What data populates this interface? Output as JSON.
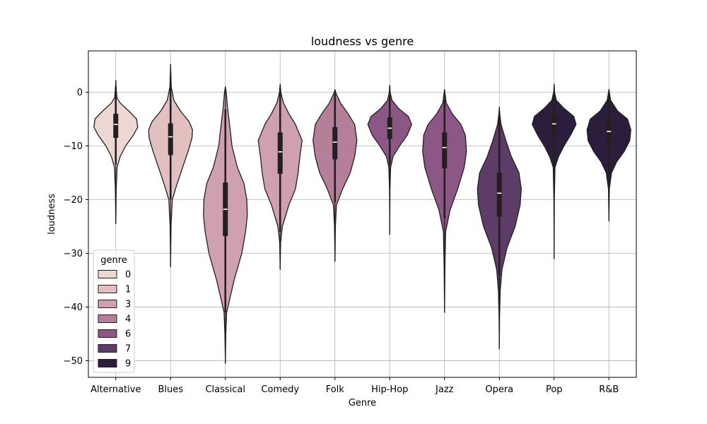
{
  "chart_data": {
    "type": "violin",
    "title": "loudness vs genre",
    "xlabel": "Genre",
    "ylabel": "loudness",
    "ylim": [
      -53.1,
      7.7
    ],
    "yticks": [
      0,
      -10,
      -20,
      -30,
      -40,
      -50
    ],
    "ytick_labels": [
      "0",
      "−10",
      "−20",
      "−30",
      "−40",
      "−50"
    ],
    "grid": true,
    "legend": {
      "title": "genre",
      "placement": "lower-left",
      "entries": [
        {
          "label": "0",
          "color": "#ecd7d2"
        },
        {
          "label": "1",
          "color": "#e2c0c0"
        },
        {
          "label": "3",
          "color": "#cfa0ad"
        },
        {
          "label": "4",
          "color": "#b67f99"
        },
        {
          "label": "6",
          "color": "#8c5785"
        },
        {
          "label": "7",
          "color": "#5e3c68"
        },
        {
          "label": "9",
          "color": "#2b1d3c"
        }
      ]
    },
    "categories": [
      "Alternative",
      "Blues",
      "Classical",
      "Comedy",
      "Folk",
      "Hip-Hop",
      "Jazz",
      "Opera",
      "Pop",
      "R&B"
    ],
    "series": [
      {
        "category": "Alternative",
        "hue": "0",
        "color": "#ecd7d2",
        "min": -24.5,
        "max": 2.2,
        "q1": -8.5,
        "median": -6.0,
        "q3": -4.0,
        "lower_adj": -13.5,
        "upper_adj": 1.0,
        "profile": [
          [
            -24.5,
            0
          ],
          [
            -18,
            0.02
          ],
          [
            -14,
            0.06
          ],
          [
            -12,
            0.2
          ],
          [
            -10,
            0.45
          ],
          [
            -8,
            0.8
          ],
          [
            -6.5,
            1.0
          ],
          [
            -5,
            0.95
          ],
          [
            -3.5,
            0.6
          ],
          [
            -2,
            0.2
          ],
          [
            -1,
            0.05
          ],
          [
            1,
            0.01
          ],
          [
            2.2,
            0
          ]
        ]
      },
      {
        "category": "Blues",
        "hue": "1",
        "color": "#e2c0c0",
        "min": -32.5,
        "max": 5.2,
        "q1": -11.7,
        "median": -8.3,
        "q3": -5.8,
        "lower_adj": -20.0,
        "upper_adj": 1.5,
        "profile": [
          [
            -32.5,
            0
          ],
          [
            -25,
            0.02
          ],
          [
            -20,
            0.08
          ],
          [
            -17,
            0.3
          ],
          [
            -14,
            0.55
          ],
          [
            -11,
            0.8
          ],
          [
            -8.5,
            0.98
          ],
          [
            -7,
            1.0
          ],
          [
            -5.5,
            0.85
          ],
          [
            -3.5,
            0.45
          ],
          [
            -1.5,
            0.15
          ],
          [
            1,
            0.03
          ],
          [
            5.2,
            0
          ]
        ]
      },
      {
        "category": "Classical",
        "hue": "3",
        "color": "#cfa0ad",
        "min": -50.5,
        "max": 1.0,
        "q1": -26.8,
        "median": -21.8,
        "q3": -16.8,
        "lower_adj": -41.0,
        "upper_adj": -3.2,
        "profile": [
          [
            -50.5,
            0
          ],
          [
            -45,
            0.02
          ],
          [
            -41,
            0.06
          ],
          [
            -35,
            0.4
          ],
          [
            -30,
            0.75
          ],
          [
            -26,
            0.92
          ],
          [
            -23,
            1.0
          ],
          [
            -20,
            0.98
          ],
          [
            -17,
            0.85
          ],
          [
            -14,
            0.55
          ],
          [
            -10,
            0.3
          ],
          [
            -7,
            0.22
          ],
          [
            -3,
            0.1
          ],
          [
            0,
            0.04
          ],
          [
            1,
            0
          ]
        ]
      },
      {
        "category": "Comedy",
        "hue": "3",
        "color": "#cfa0ad",
        "min": -33.0,
        "max": 1.5,
        "q1": -15.2,
        "median": -11.1,
        "q3": -7.5,
        "lower_adj": -26.0,
        "upper_adj": 0.5,
        "profile": [
          [
            -33,
            0
          ],
          [
            -28,
            0.02
          ],
          [
            -25,
            0.1
          ],
          [
            -21,
            0.4
          ],
          [
            -18,
            0.7
          ],
          [
            -15,
            0.82
          ],
          [
            -12,
            0.9
          ],
          [
            -9,
            1.0
          ],
          [
            -6,
            0.7
          ],
          [
            -4,
            0.4
          ],
          [
            -2,
            0.15
          ],
          [
            0,
            0.03
          ],
          [
            1.5,
            0
          ]
        ]
      },
      {
        "category": "Folk",
        "hue": "4",
        "color": "#b67f99",
        "min": -31.5,
        "max": 0.5,
        "q1": -12.5,
        "median": -9.3,
        "q3": -6.5,
        "lower_adj": -20.5,
        "upper_adj": -0.3,
        "profile": [
          [
            -31.5,
            0
          ],
          [
            -25,
            0.02
          ],
          [
            -21,
            0.07
          ],
          [
            -18,
            0.35
          ],
          [
            -15,
            0.7
          ],
          [
            -12,
            0.9
          ],
          [
            -9,
            1.0
          ],
          [
            -6,
            0.9
          ],
          [
            -4,
            0.6
          ],
          [
            -2,
            0.25
          ],
          [
            0,
            0.03
          ],
          [
            0.5,
            0
          ]
        ]
      },
      {
        "category": "Hip-Hop",
        "hue": "6",
        "color": "#8c5785",
        "min": -26.5,
        "max": 1.3,
        "q1": -8.7,
        "median": -6.7,
        "q3": -4.7,
        "lower_adj": -13.5,
        "upper_adj": -0.8,
        "profile": [
          [
            -26.5,
            0
          ],
          [
            -18,
            0.01
          ],
          [
            -14,
            0.04
          ],
          [
            -12,
            0.15
          ],
          [
            -10,
            0.45
          ],
          [
            -8,
            0.8
          ],
          [
            -6,
            1.0
          ],
          [
            -4.5,
            0.85
          ],
          [
            -3,
            0.4
          ],
          [
            -1.5,
            0.1
          ],
          [
            0,
            0.02
          ],
          [
            1.3,
            0
          ]
        ]
      },
      {
        "category": "Jazz",
        "hue": "6",
        "color": "#8c5785",
        "min": -41.0,
        "max": 0.5,
        "q1": -14.2,
        "median": -10.3,
        "q3": -7.5,
        "lower_adj": -23.5,
        "upper_adj": -1.5,
        "profile": [
          [
            -41,
            0
          ],
          [
            -32,
            0.02
          ],
          [
            -26,
            0.05
          ],
          [
            -22,
            0.25
          ],
          [
            -18,
            0.6
          ],
          [
            -14,
            0.9
          ],
          [
            -11,
            1.0
          ],
          [
            -8,
            0.95
          ],
          [
            -6,
            0.75
          ],
          [
            -4,
            0.35
          ],
          [
            -2,
            0.08
          ],
          [
            0.5,
            0
          ]
        ]
      },
      {
        "category": "Opera",
        "hue": "7",
        "color": "#5e3c68",
        "min": -47.8,
        "max": -2.8,
        "q1": -23.2,
        "median": -18.8,
        "q3": -15.0,
        "lower_adj": -34.0,
        "upper_adj": -5.0,
        "profile": [
          [
            -47.8,
            0
          ],
          [
            -42,
            0.01
          ],
          [
            -37,
            0.04
          ],
          [
            -33,
            0.12
          ],
          [
            -29,
            0.35
          ],
          [
            -25,
            0.72
          ],
          [
            -21,
            0.95
          ],
          [
            -18,
            1.0
          ],
          [
            -15,
            0.9
          ],
          [
            -12,
            0.55
          ],
          [
            -9,
            0.3
          ],
          [
            -6,
            0.08
          ],
          [
            -4,
            0.02
          ],
          [
            -2.8,
            0
          ]
        ]
      },
      {
        "category": "Pop",
        "hue": "9",
        "color": "#2b1d3c",
        "min": -31.0,
        "max": 1.5,
        "q1": -8.0,
        "median": -5.9,
        "q3": -4.2,
        "lower_adj": -12.5,
        "upper_adj": -0.5,
        "profile": [
          [
            -31,
            0
          ],
          [
            -20,
            0.01
          ],
          [
            -14,
            0.04
          ],
          [
            -12,
            0.2
          ],
          [
            -10,
            0.45
          ],
          [
            -8,
            0.75
          ],
          [
            -6,
            1.0
          ],
          [
            -4.5,
            0.9
          ],
          [
            -3,
            0.45
          ],
          [
            -1.5,
            0.1
          ],
          [
            0,
            0.02
          ],
          [
            1.5,
            0
          ]
        ]
      },
      {
        "category": "R&B",
        "hue": "9",
        "color": "#2b1d3c",
        "min": -24.0,
        "max": 0.5,
        "q1": -9.3,
        "median": -7.3,
        "q3": -5.2,
        "lower_adj": -15.0,
        "upper_adj": -0.5,
        "profile": [
          [
            -24,
            0
          ],
          [
            -18,
            0.02
          ],
          [
            -15,
            0.12
          ],
          [
            -13,
            0.35
          ],
          [
            -11,
            0.7
          ],
          [
            -9,
            0.95
          ],
          [
            -7,
            1.0
          ],
          [
            -5,
            0.85
          ],
          [
            -3.5,
            0.4
          ],
          [
            -1.5,
            0.08
          ],
          [
            0.5,
            0
          ]
        ]
      }
    ]
  }
}
